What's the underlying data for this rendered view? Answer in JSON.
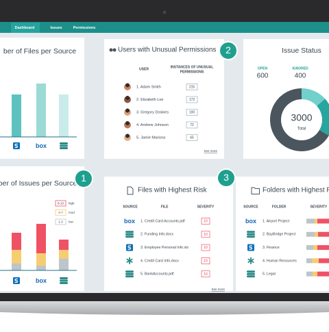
{
  "nav": {
    "tabs": [
      "Dashboard",
      "Issues",
      "Permissions"
    ],
    "active": 0
  },
  "files_per_source": {
    "title": "ber of Files per Source",
    "values": [
      62,
      78,
      62
    ],
    "icons": [
      "sharepoint",
      "box",
      "database"
    ],
    "colors": [
      "#5ec3bf",
      "#9cdad6",
      "#c9ecea"
    ],
    "ylim": [
      0,
      100
    ]
  },
  "users": {
    "badge": "2",
    "title": "Users with Unusual Permissions",
    "header": {
      "user": "USER",
      "instances": [
        "INSTANCES OF UNUSUAL",
        "PERMISSIONS"
      ]
    },
    "rows": [
      {
        "name": "1. Adam Smith",
        "count": 215
      },
      {
        "name": "2. Elizabeth Lee",
        "count": 172
      },
      {
        "name": "3. Gregory Doskies",
        "count": 100
      },
      {
        "name": "4. Andrew Johnson",
        "count": 72
      },
      {
        "name": "5. Jamie Mariona",
        "count": 65
      }
    ],
    "more": "See more"
  },
  "issue_status": {
    "title": "Issue Status",
    "open_label": "OPEN",
    "open": 600,
    "ignored_label": "IGNORED",
    "ignored": 400,
    "total": 3000,
    "total_label": "Total"
  },
  "issues_per_source": {
    "badge": "1",
    "title": "ber of Issues per Source",
    "icons": [
      "sharepoint",
      "box",
      "database"
    ],
    "ylim": [
      0,
      100
    ],
    "legend": [
      {
        "range": "8-10",
        "label": "high",
        "color": "#ef5265",
        "values": [
          25,
          43,
          15
        ]
      },
      {
        "range": "4-7",
        "label": "mod",
        "color": "#f7cd72",
        "values": [
          20,
          18,
          13
        ]
      },
      {
        "range": "1-3",
        "label": "low",
        "color": "#bcc5cb",
        "values": [
          10,
          7,
          17
        ]
      }
    ]
  },
  "risk_files": {
    "badge": "3",
    "title": "Files with Highest Risk",
    "headers": [
      "SOURCE",
      "FILE",
      "SEVERITY"
    ],
    "rows": [
      {
        "icon": "box",
        "file": "1. Credit Card Accounts.pdf",
        "severity": 10
      },
      {
        "icon": "database",
        "file": "2. Funding Info.docx",
        "severity": 10
      },
      {
        "icon": "sharepoint",
        "file": "3. Employee Personal Info.xls",
        "severity": 10
      },
      {
        "icon": "asterisk",
        "file": "4. Credit Card Info.docx",
        "severity": 10
      },
      {
        "icon": "database",
        "file": "5. BankAccounts.pdf",
        "severity": 10
      }
    ],
    "more": "See more"
  },
  "risk_folders": {
    "title": "Folders with Highest R",
    "headers": [
      "SOURCE",
      "FOLDER",
      "SEVERITY"
    ],
    "segment_colors": [
      "#bcc5cb",
      "#f7cd72",
      "#ef5265"
    ],
    "rows": [
      {
        "icon": "box",
        "folder": "1. Airport Project",
        "severity": [
          12,
          4,
          20
        ]
      },
      {
        "icon": "database",
        "folder": "2. BayBridge Project",
        "severity": [
          12,
          5,
          20
        ]
      },
      {
        "icon": "sharepoint",
        "folder": "3. Finance",
        "severity": [
          10,
          6,
          20
        ]
      },
      {
        "icon": "asterisk",
        "folder": "4. Human Resources",
        "severity": [
          8,
          10,
          20
        ]
      },
      {
        "icon": "database",
        "folder": "5. Legal",
        "severity": [
          9,
          7,
          20
        ]
      }
    ]
  }
}
